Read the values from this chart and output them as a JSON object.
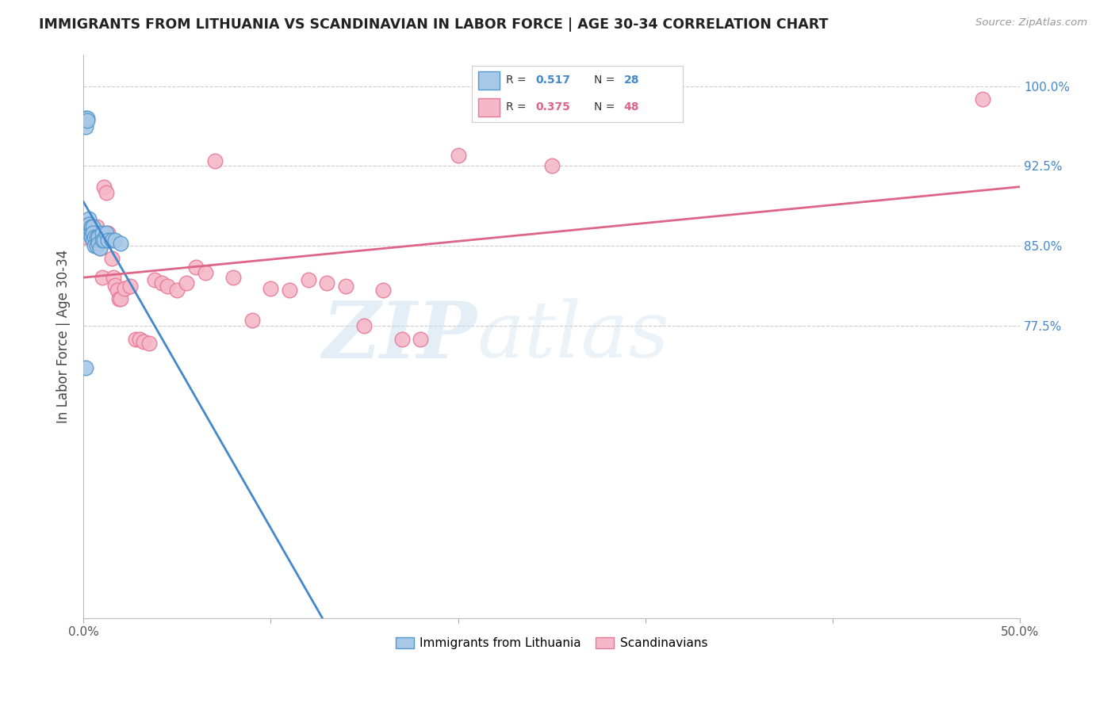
{
  "title": "IMMIGRANTS FROM LITHUANIA VS SCANDINAVIAN IN LABOR FORCE | AGE 30-34 CORRELATION CHART",
  "source": "Source: ZipAtlas.com",
  "ylabel": "In Labor Force | Age 30-34",
  "xlim": [
    0.0,
    0.5
  ],
  "ylim": [
    0.5,
    1.03
  ],
  "xticks": [
    0.0,
    0.1,
    0.2,
    0.3,
    0.4,
    0.5
  ],
  "xticklabels": [
    "0.0%",
    "",
    "",
    "",
    "",
    "50.0%"
  ],
  "ytick_positions": [
    0.775,
    0.85,
    0.925,
    1.0
  ],
  "ytick_labels": [
    "77.5%",
    "85.0%",
    "92.5%",
    "100.0%"
  ],
  "blue_scatter_x": [
    0.001,
    0.001,
    0.002,
    0.002,
    0.003,
    0.003,
    0.004,
    0.004,
    0.004,
    0.005,
    0.005,
    0.005,
    0.006,
    0.006,
    0.007,
    0.007,
    0.008,
    0.008,
    0.009,
    0.01,
    0.01,
    0.011,
    0.012,
    0.013,
    0.015,
    0.017,
    0.02,
    0.001
  ],
  "blue_scatter_y": [
    0.97,
    0.962,
    0.97,
    0.968,
    0.875,
    0.87,
    0.868,
    0.862,
    0.858,
    0.868,
    0.862,
    0.855,
    0.858,
    0.85,
    0.858,
    0.85,
    0.858,
    0.852,
    0.848,
    0.862,
    0.855,
    0.855,
    0.862,
    0.855,
    0.855,
    0.855,
    0.852,
    0.735
  ],
  "pink_scatter_x": [
    0.001,
    0.002,
    0.003,
    0.004,
    0.005,
    0.006,
    0.007,
    0.008,
    0.009,
    0.01,
    0.011,
    0.012,
    0.013,
    0.014,
    0.015,
    0.016,
    0.017,
    0.018,
    0.019,
    0.02,
    0.022,
    0.025,
    0.028,
    0.03,
    0.032,
    0.035,
    0.038,
    0.042,
    0.045,
    0.05,
    0.055,
    0.06,
    0.065,
    0.07,
    0.08,
    0.09,
    0.1,
    0.11,
    0.12,
    0.13,
    0.14,
    0.15,
    0.16,
    0.17,
    0.18,
    0.2,
    0.25,
    0.48
  ],
  "pink_scatter_y": [
    0.858,
    0.87,
    0.862,
    0.868,
    0.858,
    0.855,
    0.868,
    0.862,
    0.848,
    0.82,
    0.905,
    0.9,
    0.862,
    0.855,
    0.838,
    0.82,
    0.813,
    0.808,
    0.8,
    0.8,
    0.81,
    0.812,
    0.762,
    0.762,
    0.76,
    0.758,
    0.818,
    0.815,
    0.812,
    0.808,
    0.815,
    0.83,
    0.825,
    0.93,
    0.82,
    0.78,
    0.81,
    0.808,
    0.818,
    0.815,
    0.812,
    0.775,
    0.808,
    0.762,
    0.762,
    0.935,
    0.925,
    0.988
  ],
  "blue_R": 0.517,
  "blue_N": 28,
  "pink_R": 0.375,
  "pink_N": 48,
  "blue_dot_color": "#a8c8e8",
  "blue_edge_color": "#5599cc",
  "pink_dot_color": "#f5b8c8",
  "pink_edge_color": "#e87898",
  "blue_line_color": "#4488cc",
  "pink_line_color": "#dd6688",
  "legend_label_blue": "Immigrants from Lithuania",
  "legend_label_pink": "Scandinavians",
  "watermark_zip": "ZIP",
  "watermark_atlas": "atlas",
  "background_color": "#ffffff",
  "grid_color": "#cccccc"
}
